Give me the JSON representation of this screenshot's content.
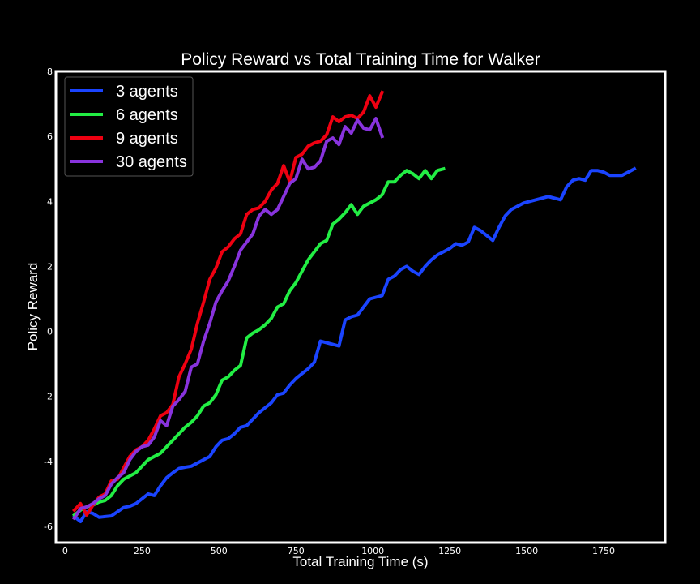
{
  "chart_data": {
    "type": "line",
    "title": "Policy Reward vs Total Training Time for Walker",
    "xlabel": "Total Training Time (s)",
    "ylabel": "Policy Reward",
    "xlim": [
      -30,
      1950
    ],
    "ylim": [
      -6.5,
      8
    ],
    "xticks": [
      0,
      250,
      500,
      750,
      1000,
      1250,
      1500,
      1750
    ],
    "yticks": [
      -6,
      -4,
      -2,
      0,
      2,
      4,
      6,
      8
    ],
    "grid": false,
    "legend_position": "top-left",
    "background": "#000000",
    "series": [
      {
        "name": "3 agents",
        "color": "#1a44ff",
        "x": [
          30,
          50,
          70,
          90,
          110,
          130,
          150,
          170,
          190,
          210,
          230,
          250,
          270,
          290,
          310,
          330,
          350,
          370,
          390,
          410,
          430,
          450,
          470,
          490,
          510,
          530,
          550,
          570,
          590,
          610,
          630,
          650,
          670,
          690,
          710,
          730,
          750,
          770,
          790,
          810,
          830,
          850,
          870,
          890,
          910,
          930,
          950,
          970,
          990,
          1010,
          1030,
          1050,
          1070,
          1090,
          1110,
          1130,
          1150,
          1170,
          1190,
          1210,
          1230,
          1250,
          1270,
          1290,
          1310,
          1330,
          1350,
          1370,
          1390,
          1410,
          1430,
          1450,
          1470,
          1490,
          1510,
          1530,
          1550,
          1570,
          1590,
          1610,
          1630,
          1650,
          1670,
          1690,
          1710,
          1730,
          1750,
          1770,
          1790,
          1810,
          1830,
          1850
        ],
        "values": [
          -5.7,
          -5.85,
          -5.55,
          -5.6,
          -5.72,
          -5.7,
          -5.68,
          -5.55,
          -5.42,
          -5.38,
          -5.3,
          -5.15,
          -5.0,
          -5.05,
          -4.75,
          -4.5,
          -4.35,
          -4.22,
          -4.18,
          -4.15,
          -4.05,
          -3.95,
          -3.85,
          -3.55,
          -3.35,
          -3.3,
          -3.15,
          -2.95,
          -2.9,
          -2.7,
          -2.5,
          -2.35,
          -2.2,
          -1.95,
          -1.9,
          -1.65,
          -1.45,
          -1.3,
          -1.15,
          -0.95,
          -0.3,
          -0.35,
          -0.4,
          -0.45,
          0.35,
          0.45,
          0.5,
          0.75,
          1.0,
          1.05,
          1.1,
          1.6,
          1.7,
          1.9,
          2.0,
          1.85,
          1.75,
          2.0,
          2.2,
          2.35,
          2.45,
          2.55,
          2.7,
          2.65,
          2.75,
          3.2,
          3.1,
          2.95,
          2.8,
          3.2,
          3.55,
          3.75,
          3.85,
          3.95,
          4.0,
          4.05,
          4.1,
          4.15,
          4.1,
          4.05,
          4.45,
          4.65,
          4.7,
          4.65,
          4.95,
          4.95,
          4.9,
          4.8,
          4.8,
          4.8,
          4.9,
          5.0
        ]
      },
      {
        "name": "6 agents",
        "color": "#22ee44",
        "x": [
          30,
          50,
          70,
          90,
          110,
          130,
          150,
          170,
          190,
          210,
          230,
          250,
          270,
          290,
          310,
          330,
          350,
          370,
          390,
          410,
          430,
          450,
          470,
          490,
          510,
          530,
          550,
          570,
          590,
          610,
          630,
          650,
          670,
          690,
          710,
          730,
          750,
          770,
          790,
          810,
          830,
          850,
          870,
          890,
          910,
          930,
          950,
          970,
          990,
          1010,
          1030,
          1050,
          1070,
          1090,
          1110,
          1130,
          1150,
          1170,
          1190,
          1210,
          1230
        ],
        "values": [
          -5.65,
          -5.5,
          -5.4,
          -5.35,
          -5.25,
          -5.2,
          -5.05,
          -4.75,
          -4.55,
          -4.45,
          -4.35,
          -4.15,
          -3.95,
          -3.85,
          -3.75,
          -3.55,
          -3.35,
          -3.15,
          -2.95,
          -2.8,
          -2.6,
          -2.3,
          -2.2,
          -1.95,
          -1.5,
          -1.4,
          -1.2,
          -1.05,
          -0.2,
          -0.05,
          0.05,
          0.2,
          0.4,
          0.75,
          0.85,
          1.25,
          1.5,
          1.85,
          2.2,
          2.45,
          2.7,
          2.8,
          3.3,
          3.45,
          3.65,
          3.9,
          3.6,
          3.85,
          3.95,
          4.05,
          4.2,
          4.6,
          4.6,
          4.8,
          4.95,
          4.85,
          4.7,
          4.95,
          4.7,
          4.95,
          5.0
        ]
      },
      {
        "name": "9 agents",
        "color": "#ee0011",
        "x": [
          30,
          50,
          70,
          90,
          110,
          130,
          150,
          170,
          190,
          210,
          230,
          250,
          270,
          290,
          310,
          330,
          350,
          370,
          390,
          410,
          430,
          450,
          470,
          490,
          510,
          530,
          550,
          570,
          590,
          610,
          630,
          650,
          670,
          690,
          710,
          730,
          750,
          770,
          790,
          810,
          830,
          850,
          870,
          890,
          910,
          930,
          950,
          970,
          990,
          1010,
          1030
        ],
        "values": [
          -5.5,
          -5.3,
          -5.65,
          -5.35,
          -5.1,
          -5.0,
          -4.6,
          -4.55,
          -4.2,
          -3.85,
          -3.65,
          -3.55,
          -3.35,
          -3.0,
          -2.6,
          -2.5,
          -2.25,
          -1.4,
          -1.0,
          -0.55,
          0.25,
          0.9,
          1.6,
          1.95,
          2.45,
          2.6,
          2.85,
          3.0,
          3.6,
          3.75,
          3.8,
          4.0,
          4.35,
          4.55,
          5.1,
          4.6,
          5.35,
          5.45,
          5.7,
          5.8,
          5.85,
          6.05,
          6.6,
          6.45,
          6.6,
          6.65,
          6.55,
          6.75,
          7.25,
          6.9,
          7.35
        ]
      },
      {
        "name": "30 agents",
        "color": "#8833dd",
        "x": [
          30,
          50,
          70,
          90,
          110,
          130,
          150,
          170,
          190,
          210,
          230,
          250,
          270,
          290,
          310,
          330,
          350,
          370,
          390,
          410,
          430,
          450,
          470,
          490,
          510,
          530,
          550,
          570,
          590,
          610,
          630,
          650,
          670,
          690,
          710,
          730,
          750,
          770,
          790,
          810,
          830,
          850,
          870,
          890,
          910,
          930,
          950,
          970,
          990,
          1010,
          1030
        ],
        "values": [
          -5.75,
          -5.45,
          -5.4,
          -5.3,
          -5.15,
          -5.05,
          -4.7,
          -4.5,
          -4.35,
          -3.95,
          -3.7,
          -3.55,
          -3.5,
          -3.25,
          -2.75,
          -2.9,
          -2.3,
          -2.1,
          -1.85,
          -1.1,
          -1.0,
          -0.3,
          0.25,
          0.9,
          1.25,
          1.55,
          2.0,
          2.5,
          2.75,
          3.0,
          3.55,
          3.75,
          3.6,
          3.75,
          4.15,
          4.55,
          4.7,
          5.3,
          5.0,
          5.05,
          5.25,
          5.85,
          5.95,
          5.75,
          6.3,
          6.1,
          6.5,
          6.25,
          6.2,
          6.55,
          6.0
        ]
      }
    ]
  }
}
